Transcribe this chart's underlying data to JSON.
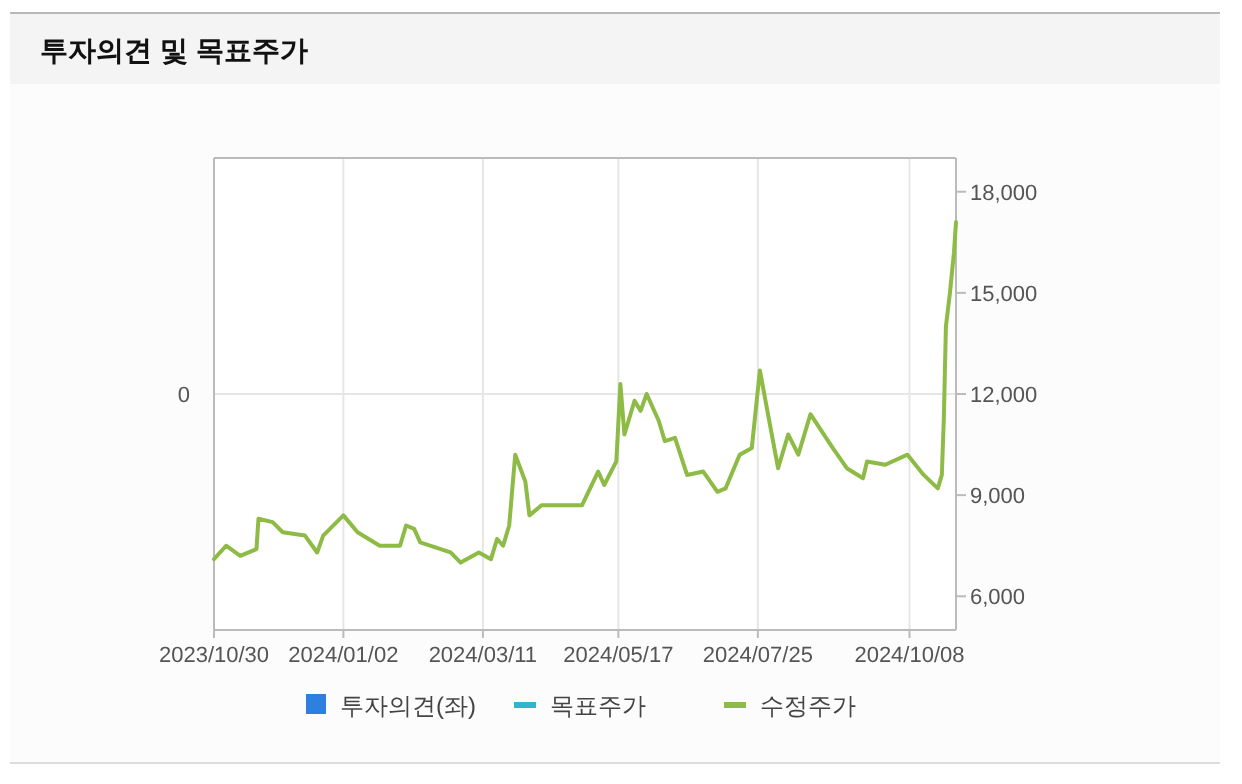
{
  "chart_data": {
    "type": "line",
    "title": "투자의견 및 목표주가",
    "x": [
      "2023-10-30",
      "2023-11-05",
      "2023-11-12",
      "2023-11-20",
      "2023-11-21",
      "2023-11-28",
      "2023-12-03",
      "2023-12-14",
      "2023-12-20",
      "2023-12-23",
      "2024-01-02",
      "2024-01-09",
      "2024-01-20",
      "2024-01-30",
      "2024-02-02",
      "2024-02-06",
      "2024-02-09",
      "2024-02-24",
      "2024-02-29",
      "2024-03-09",
      "2024-03-15",
      "2024-03-18",
      "2024-03-21",
      "2024-03-24",
      "2024-03-27",
      "2024-04-01",
      "2024-04-03",
      "2024-04-09",
      "2024-04-19",
      "2024-04-29",
      "2024-05-07",
      "2024-05-10",
      "2024-05-16",
      "2024-05-18",
      "2024-05-20",
      "2024-05-25",
      "2024-05-28",
      "2024-05-31",
      "2024-06-06",
      "2024-06-09",
      "2024-06-14",
      "2024-06-20",
      "2024-06-28",
      "2024-07-05",
      "2024-07-09",
      "2024-07-16",
      "2024-07-22",
      "2024-07-26",
      "2024-07-30",
      "2024-08-04",
      "2024-08-09",
      "2024-08-14",
      "2024-08-20",
      "2024-08-31",
      "2024-09-07",
      "2024-09-15",
      "2024-09-17",
      "2024-09-26",
      "2024-10-07",
      "2024-10-15",
      "2024-10-22",
      "2024-10-24",
      "2024-10-25",
      "2024-10-26",
      "2024-10-28",
      "2024-10-30",
      "2024-10-31"
    ],
    "series": [
      {
        "name": "투자의견(좌)",
        "type": "bar",
        "axis": "y",
        "color": "#2d7fe0",
        "values": [
          null,
          null,
          null,
          null,
          null,
          null,
          null,
          null,
          null,
          null,
          null,
          null,
          null,
          null,
          null,
          null,
          null,
          null,
          null,
          null,
          null,
          null,
          null,
          null,
          null,
          null,
          null,
          null,
          null,
          null,
          null,
          null,
          null,
          null,
          null,
          null,
          null,
          null,
          null,
          null,
          null,
          null,
          null,
          null,
          null,
          null,
          null,
          null,
          null,
          null,
          null,
          null,
          null,
          null,
          null,
          null,
          null,
          null,
          null,
          null,
          null,
          null,
          null,
          null,
          null,
          null,
          null
        ]
      },
      {
        "name": "목표주가",
        "type": "line",
        "axis": "y2",
        "color": "#2fb5d0",
        "values": [
          null,
          null,
          null,
          null,
          null,
          null,
          null,
          null,
          null,
          null,
          null,
          null,
          null,
          null,
          null,
          null,
          null,
          null,
          null,
          null,
          null,
          null,
          null,
          null,
          null,
          null,
          null,
          null,
          null,
          null,
          null,
          null,
          null,
          null,
          null,
          null,
          null,
          null,
          null,
          null,
          null,
          null,
          null,
          null,
          null,
          null,
          null,
          null,
          null,
          null,
          null,
          null,
          null,
          null,
          null,
          null,
          null,
          null,
          null,
          null,
          null,
          null,
          null,
          null,
          null,
          null,
          null
        ]
      },
      {
        "name": "수정주가",
        "axis": "y2",
        "color": "#8dbb45",
        "values": [
          7100,
          7500,
          7200,
          7400,
          8300,
          8200,
          7900,
          7800,
          7300,
          7800,
          8400,
          7900,
          7500,
          7500,
          8100,
          8000,
          7600,
          7300,
          7000,
          7300,
          7100,
          7700,
          7500,
          8100,
          10200,
          9400,
          8400,
          8700,
          8700,
          8700,
          9700,
          9300,
          10000,
          12300,
          10800,
          11800,
          11500,
          12000,
          11200,
          10600,
          10700,
          9600,
          9700,
          9100,
          9200,
          10200,
          10400,
          12700,
          11400,
          9800,
          10800,
          10200,
          11400,
          10400,
          9800,
          9500,
          10000,
          9900,
          10200,
          9600,
          9200,
          9600,
          11300,
          14000,
          15000,
          16200,
          17100
        ]
      }
    ],
    "xlim": [
      "2023-10-30",
      "2024-10-31"
    ],
    "xticks": [
      {
        "value": "2023-10-30",
        "label": "2023/10/30"
      },
      {
        "value": "2024-01-02",
        "label": "2024/01/02"
      },
      {
        "value": "2024-03-11",
        "label": "2024/03/11"
      },
      {
        "value": "2024-05-17",
        "label": "2024/05/17"
      },
      {
        "value": "2024-07-25",
        "label": "2024/07/25"
      },
      {
        "value": "2024-10-08",
        "label": "2024/10/08"
      }
    ],
    "annotations": [
      "0"
    ],
    "y2lim": [
      5000,
      19000
    ],
    "y2ticks": [
      {
        "value": 6000,
        "label": "6,000"
      },
      {
        "value": 9000,
        "label": "9,000"
      },
      {
        "value": 12000,
        "label": "12,000"
      },
      {
        "value": 15000,
        "label": "15,000"
      },
      {
        "value": 18000,
        "label": "18,000"
      }
    ],
    "grid": true,
    "legend": "bottom"
  }
}
